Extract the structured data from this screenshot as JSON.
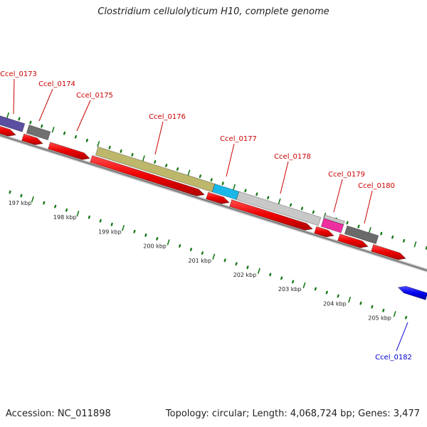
{
  "title": "Clostridium cellulolyticum H10, complete genome",
  "footer": {
    "accession": "Accession: NC_011898",
    "stats": "Topology: circular; Length: 4,068,724 bp; Genes: 3,477"
  },
  "colors": {
    "cds_forward": "#ff0000",
    "cds_reverse": "#0000ff",
    "backbone": "#7a7a7a",
    "tick": "#1a7a1a",
    "label_forward": "#cc0000",
    "label_reverse": "#0000cc"
  },
  "scale": {
    "ticks": [
      {
        "label": "197 kbp"
      },
      {
        "label": "198 kbp"
      },
      {
        "label": "199 kbp"
      },
      {
        "label": "200 kbp"
      },
      {
        "label": "201 kbp"
      },
      {
        "label": "202 kbp"
      },
      {
        "label": "203 kbp"
      },
      {
        "label": "204 kbp"
      },
      {
        "label": "205 kbp"
      }
    ]
  },
  "genes": [
    {
      "name": "Ccel_0173",
      "color": "#5a4fa0"
    },
    {
      "name": "Ccel_0174",
      "color": "#707070"
    },
    {
      "name": "Ccel_0175",
      "color": null
    },
    {
      "name": "Ccel_0176",
      "color": "#bdb76b"
    },
    {
      "name": "Ccel_0177",
      "color": "#1ab8e8"
    },
    {
      "name": "Ccel_0178",
      "color": "#c8c8c8"
    },
    {
      "name": "Ccel_0179",
      "color": "#ee2fa0"
    },
    {
      "name": "Ccel_0180",
      "color": "#6a6a6a"
    },
    {
      "name": "Ccel_0182",
      "color": null,
      "strand": "reverse"
    }
  ]
}
